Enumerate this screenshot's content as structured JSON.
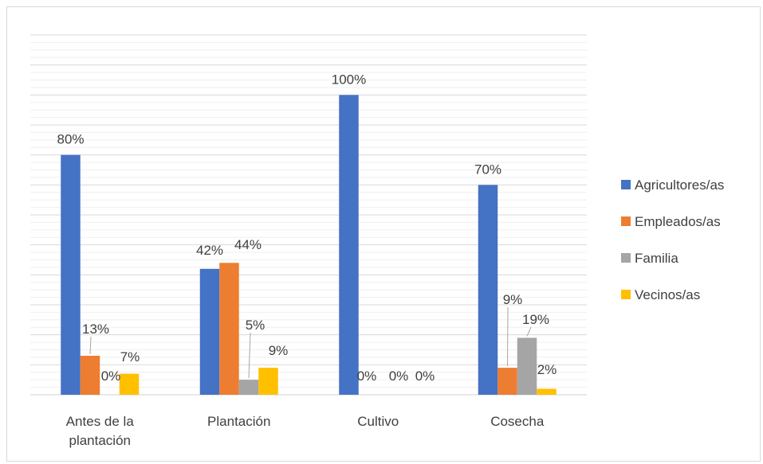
{
  "chart_data": {
    "type": "bar",
    "title": "",
    "xlabel": "",
    "ylabel": "",
    "ylim": [
      0,
      1.2
    ],
    "grid": true,
    "legend_position": "right",
    "categories": [
      [
        "Antes de la",
        "plantación"
      ],
      [
        "Plantación"
      ],
      [
        "Cultivo"
      ],
      [
        "Cosecha"
      ]
    ],
    "series": [
      {
        "name": "Agricultores/as",
        "color": "#4472c4",
        "values": [
          0.8,
          0.42,
          1.0,
          0.7
        ],
        "labels": [
          "80%",
          "42%",
          "100%",
          "70%"
        ]
      },
      {
        "name": "Empleados/as",
        "color": "#ed7d31",
        "values": [
          0.13,
          0.44,
          0.0,
          0.09
        ],
        "labels": [
          "13%",
          "44%",
          "0%",
          "9%"
        ]
      },
      {
        "name": "Familia",
        "color": "#a5a5a5",
        "values": [
          0.0,
          0.05,
          0.0,
          0.19
        ],
        "labels": [
          "0%",
          "5%",
          "0%",
          "19%"
        ]
      },
      {
        "name": "Vecinos/as",
        "color": "#ffc000",
        "values": [
          0.07,
          0.09,
          0.0,
          0.02
        ],
        "labels": [
          "7%",
          "9%",
          "0%",
          "2%"
        ]
      }
    ]
  }
}
